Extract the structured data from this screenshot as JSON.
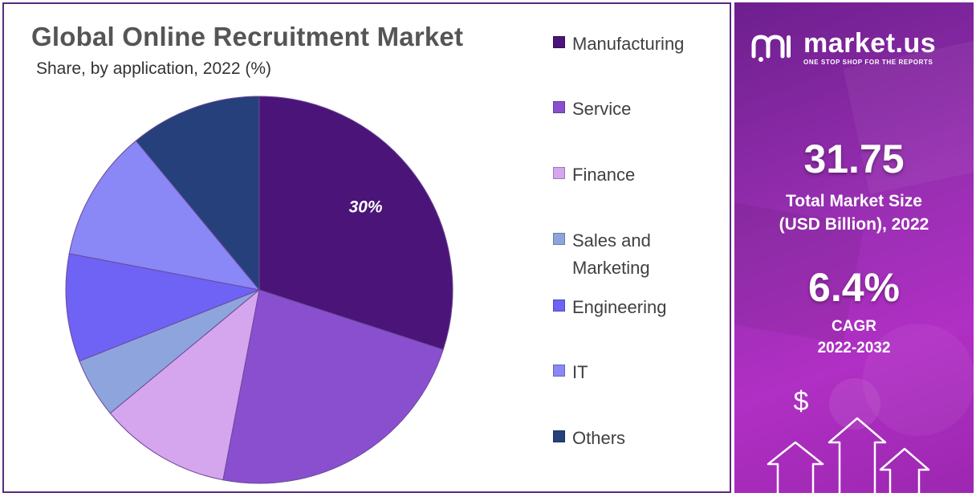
{
  "chart_data": {
    "type": "pie",
    "title": "Global Online Recruitment Market",
    "subtitle": "Share, by application, 2022 (%)",
    "categories": [
      "Manufacturing",
      "Service",
      "Finance",
      "Sales and Marketing",
      "Engineering",
      "IT",
      "Others"
    ],
    "values": [
      30,
      23,
      11,
      5,
      9,
      11,
      11
    ],
    "colors": [
      "#4b1478",
      "#8a4fcf",
      "#d5a5ee",
      "#8ea4dc",
      "#6e63f5",
      "#8a87f7",
      "#25407a"
    ],
    "data_labels": [
      "30%",
      "",
      "",
      "",
      "",
      "",
      ""
    ],
    "legend_placement": "right",
    "legend": [
      {
        "label": "Manufacturing",
        "color": "#4b1478"
      },
      {
        "label": "Service",
        "color": "#8a4fcf"
      },
      {
        "label": "Finance",
        "color": "#d5a5ee"
      },
      {
        "label": "Sales and Marketing",
        "color": "#8ea4dc"
      },
      {
        "label": "Engineering",
        "color": "#6e63f5"
      },
      {
        "label": "IT",
        "color": "#8a87f7"
      },
      {
        "label": "Others",
        "color": "#25407a"
      }
    ]
  },
  "side_panel": {
    "brand_name": "market.us",
    "brand_tagline": "ONE STOP SHOP FOR THE REPORTS",
    "market_size_value": "31.75",
    "market_size_label_1": "Total Market Size",
    "market_size_label_2": "(USD Billion), 2022",
    "cagr_value": "6.4%",
    "cagr_label": "CAGR",
    "cagr_period": "2022-2032",
    "dollar_symbol": "$",
    "icons": [
      "market-us-logo-icon",
      "dollar-icon",
      "up-arrow-icon"
    ]
  }
}
